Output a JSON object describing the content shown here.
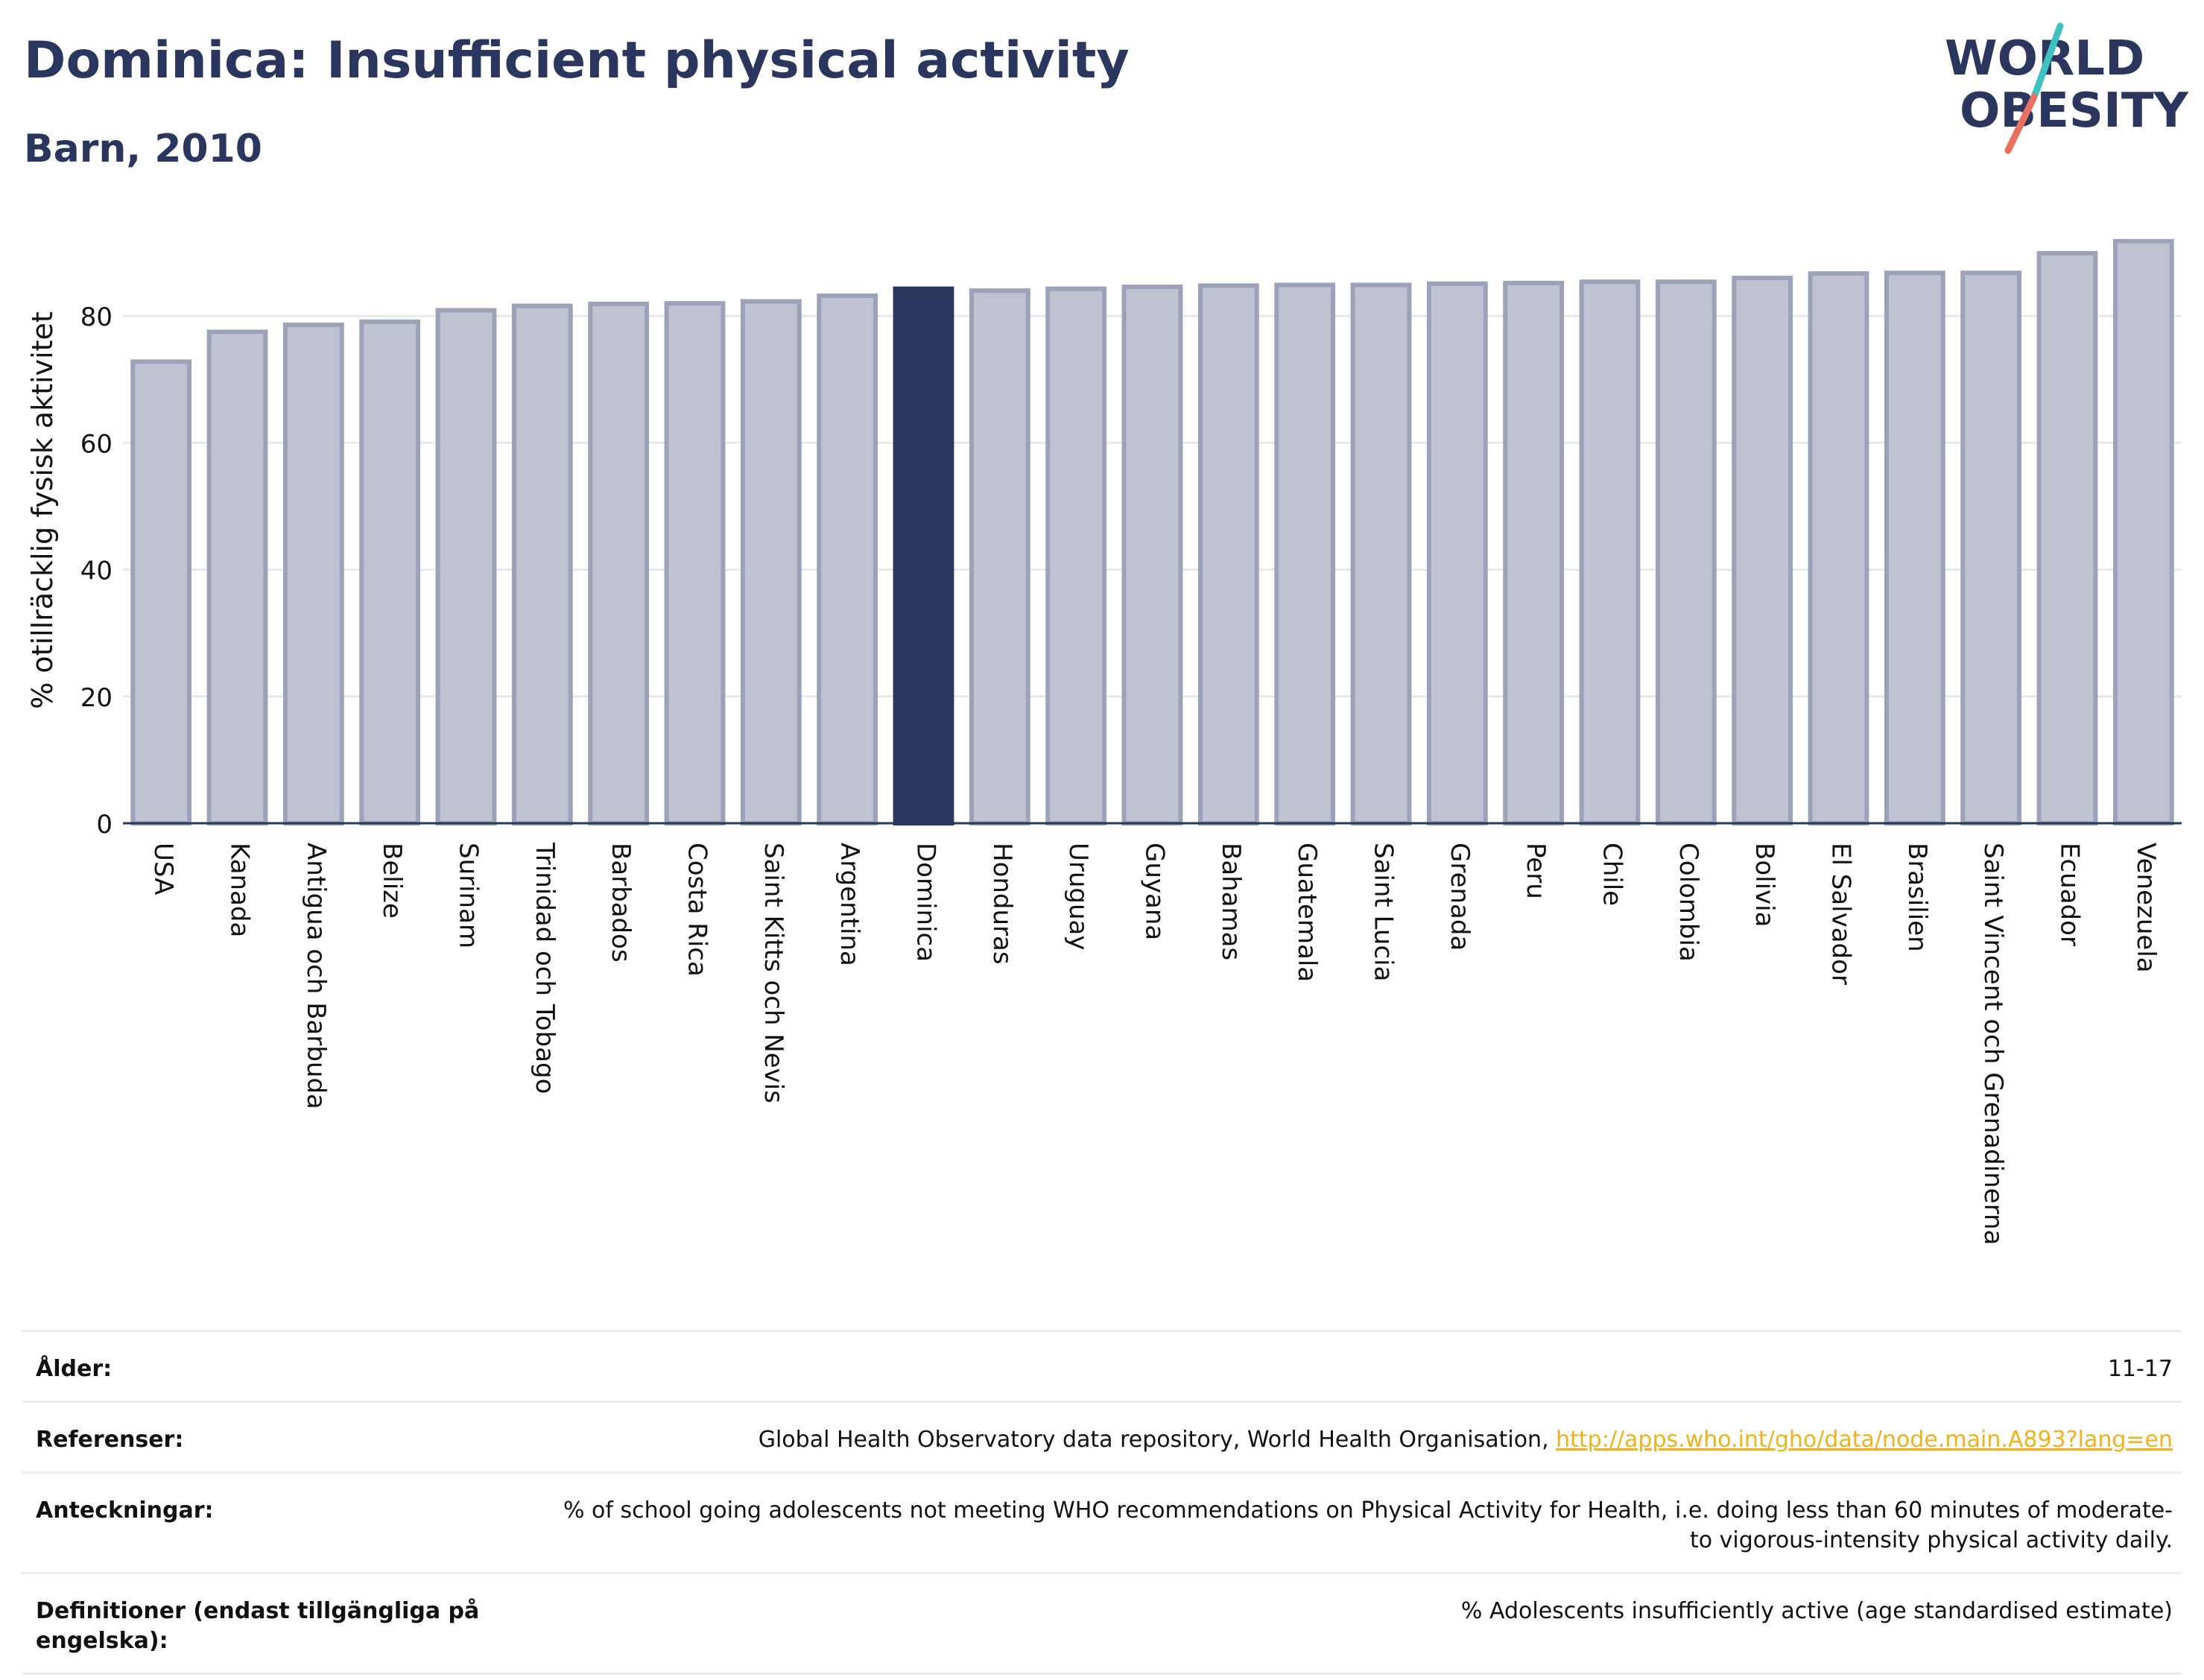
{
  "header": {
    "title": "Dominica: Insufficient physical activity",
    "subtitle": "Barn, 2010",
    "logo_line1": "WORLD",
    "logo_line2": "OBESITY"
  },
  "colors": {
    "highlight": "#2b365e",
    "bar": "#bfc3d1",
    "bar_outline": "#9ba2ba",
    "title": "#2b365e",
    "logo_teal": "#3ec1c1",
    "logo_coral": "#e8705f",
    "link": "#f0b21b"
  },
  "chart_data": {
    "type": "bar",
    "ylabel": "% otillräcklig fysisk aktivitet",
    "ylim": [
      0,
      96
    ],
    "yticks": [
      0,
      20,
      40,
      60,
      80
    ],
    "grid": true,
    "highlight": "Dominica",
    "categories": [
      "USA",
      "Kanada",
      "Antigua och Barbuda",
      "Belize",
      "Surinam",
      "Trinidad och Tobago",
      "Barbados",
      "Costa Rica",
      "Saint Kitts och Nevis",
      "Argentina",
      "Dominica",
      "Honduras",
      "Uruguay",
      "Guyana",
      "Bahamas",
      "Guatemala",
      "Saint Lucia",
      "Grenada",
      "Peru",
      "Chile",
      "Colombia",
      "Bolivia",
      "El Salvador",
      "Brasilien",
      "Saint Vincent och Grenadinerna",
      "Ecuador",
      "Venezuela"
    ],
    "values": [
      72.8,
      77.5,
      78.6,
      79.1,
      80.9,
      81.6,
      81.9,
      82.0,
      82.3,
      83.2,
      84.3,
      84.0,
      84.3,
      84.6,
      84.8,
      84.9,
      84.9,
      85.1,
      85.2,
      85.4,
      85.4,
      86.0,
      86.7,
      86.8,
      86.8,
      89.9,
      91.8
    ]
  },
  "meta": [
    {
      "label": "Ålder:",
      "value": "11-17"
    },
    {
      "label": "Referenser:",
      "value": "Global Health Observatory data repository, World Health Organisation, ",
      "link": "http://apps.who.int/gho/data/node.main.A893?lang=en"
    },
    {
      "label": "Anteckningar:",
      "value": "% of school going adolescents not meeting WHO recommendations on Physical Activity for Health, i.e. doing less than 60 minutes of moderate- to vigorous-intensity physical activity daily."
    },
    {
      "label": "Definitioner (endast tillgängliga på engelska):",
      "value": "% Adolescents insufficiently active (age standardised estimate)"
    }
  ]
}
